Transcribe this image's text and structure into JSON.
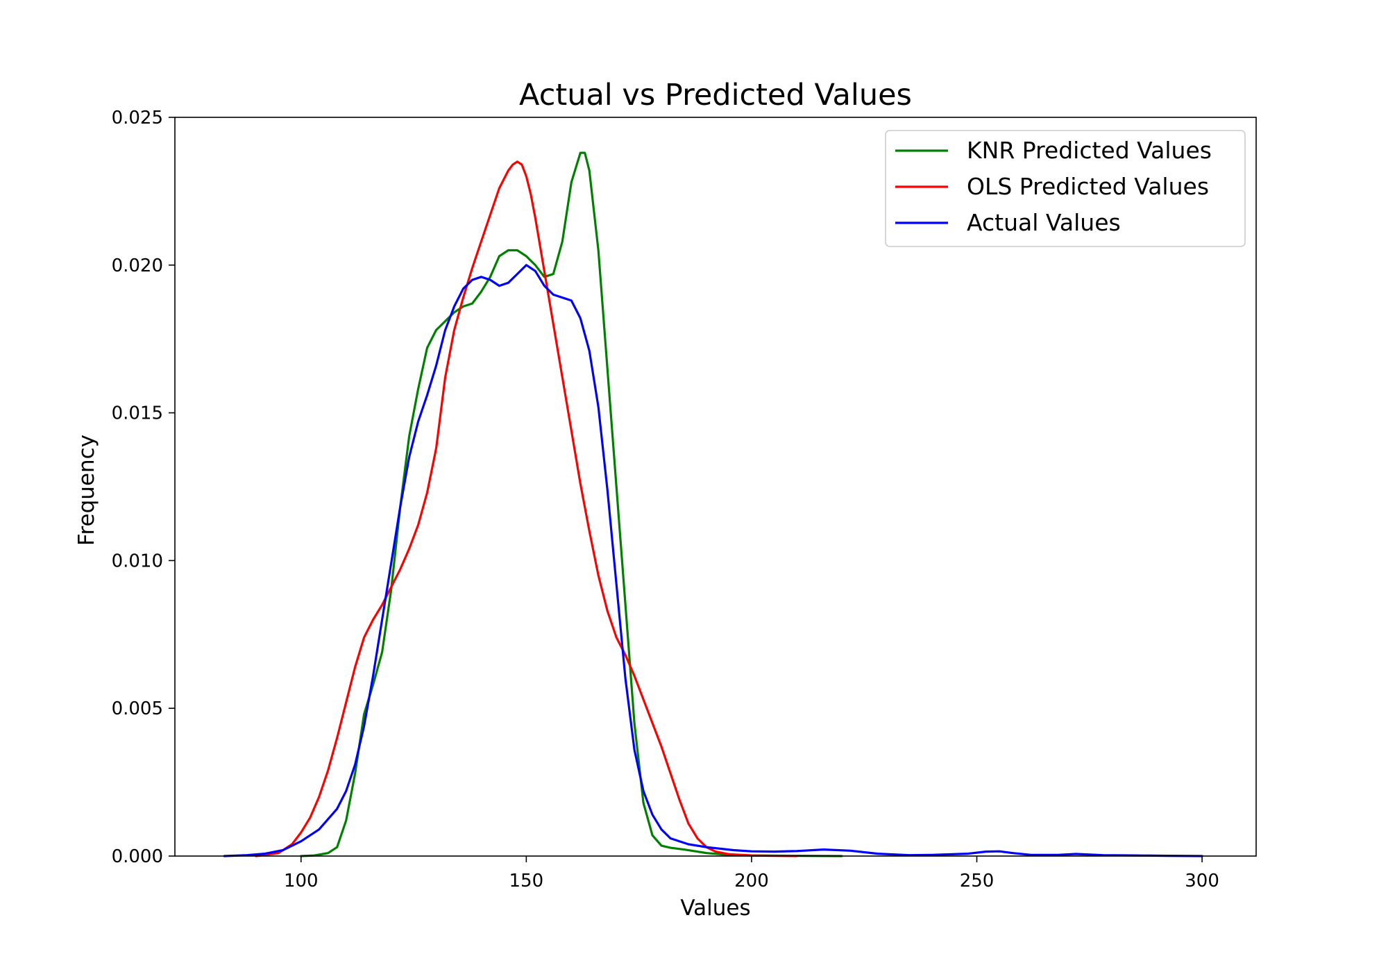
{
  "chart_data": {
    "type": "line",
    "title": "Actual vs Predicted Values",
    "xlabel": "Values",
    "ylabel": "Frequency",
    "xlim": [
      72,
      312
    ],
    "ylim": [
      0,
      0.025
    ],
    "xticks": [
      100,
      150,
      200,
      250,
      300
    ],
    "yticks": [
      0.0,
      0.005,
      0.01,
      0.015,
      0.02,
      0.025
    ],
    "ytick_labels": [
      "0.000",
      "0.005",
      "0.010",
      "0.015",
      "0.020",
      "0.025"
    ],
    "grid": false,
    "legend_position": "top-right",
    "series": [
      {
        "name": "KNR Predicted Values",
        "color": "#008000",
        "x": [
          100,
          103,
          106,
          108,
          110,
          112,
          114,
          116,
          118,
          120,
          122,
          124,
          126,
          128,
          130,
          132,
          134,
          136,
          138,
          140,
          142,
          144,
          146,
          148,
          150,
          152,
          154,
          156,
          158,
          160,
          162,
          163,
          164,
          166,
          168,
          170,
          172,
          174,
          176,
          178,
          180,
          182,
          185,
          190,
          195,
          200,
          210,
          220
        ],
        "y": [
          0,
          2e-05,
          0.0001,
          0.0003,
          0.0012,
          0.0028,
          0.0048,
          0.0058,
          0.0069,
          0.009,
          0.0118,
          0.0142,
          0.0158,
          0.0172,
          0.0178,
          0.0181,
          0.0184,
          0.0186,
          0.0187,
          0.0191,
          0.0196,
          0.0203,
          0.0205,
          0.0205,
          0.0203,
          0.02,
          0.0196,
          0.0197,
          0.0208,
          0.0228,
          0.0238,
          0.0238,
          0.0232,
          0.0205,
          0.0165,
          0.0125,
          0.0085,
          0.0045,
          0.0018,
          0.0007,
          0.00035,
          0.00028,
          0.00022,
          0.0001,
          4e-05,
          2e-05,
          1e-05,
          0
        ]
      },
      {
        "name": "OLS Predicted Values",
        "color": "#ff0000",
        "x": [
          90,
          95,
          98,
          100,
          102,
          104,
          106,
          108,
          110,
          112,
          114,
          116,
          118,
          120,
          122,
          124,
          126,
          128,
          130,
          132,
          134,
          136,
          138,
          140,
          142,
          144,
          146,
          147,
          148,
          149,
          150,
          151,
          152,
          154,
          156,
          158,
          160,
          162,
          164,
          166,
          168,
          170,
          172,
          174,
          176,
          178,
          180,
          182,
          184,
          186,
          188,
          190,
          192,
          195,
          200,
          205,
          210
        ],
        "y": [
          0,
          0.0001,
          0.0004,
          0.0008,
          0.0013,
          0.002,
          0.0029,
          0.004,
          0.0052,
          0.0064,
          0.0074,
          0.008,
          0.0085,
          0.0091,
          0.0097,
          0.0104,
          0.0112,
          0.0123,
          0.0138,
          0.0162,
          0.0178,
          0.0189,
          0.0199,
          0.0208,
          0.0217,
          0.0226,
          0.0232,
          0.0234,
          0.0235,
          0.0234,
          0.023,
          0.0224,
          0.0216,
          0.0198,
          0.018,
          0.0162,
          0.0144,
          0.0126,
          0.011,
          0.0095,
          0.0083,
          0.0074,
          0.0068,
          0.0061,
          0.0053,
          0.0045,
          0.0037,
          0.0028,
          0.0019,
          0.0011,
          0.0006,
          0.0003,
          0.00015,
          6e-05,
          2e-05,
          1e-05,
          0
        ]
      },
      {
        "name": "Actual Values",
        "color": "#0000ff",
        "x": [
          83,
          88,
          92,
          96,
          100,
          104,
          108,
          110,
          112,
          114,
          116,
          118,
          120,
          122,
          124,
          126,
          128,
          130,
          132,
          134,
          136,
          138,
          140,
          142,
          144,
          146,
          148,
          150,
          152,
          154,
          156,
          158,
          160,
          162,
          164,
          166,
          168,
          170,
          172,
          174,
          176,
          178,
          180,
          182,
          186,
          190,
          196,
          200,
          205,
          210,
          216,
          222,
          228,
          235,
          240,
          248,
          252,
          255,
          258,
          262,
          268,
          272,
          278,
          285,
          292,
          300
        ],
        "y": [
          0,
          3e-05,
          8e-05,
          0.0002,
          0.0005,
          0.0009,
          0.0016,
          0.0022,
          0.0031,
          0.0044,
          0.0061,
          0.008,
          0.0099,
          0.0118,
          0.0135,
          0.0147,
          0.0156,
          0.0166,
          0.0178,
          0.0186,
          0.0192,
          0.0195,
          0.0196,
          0.0195,
          0.0193,
          0.0194,
          0.0197,
          0.02,
          0.0198,
          0.0193,
          0.019,
          0.0189,
          0.0188,
          0.0182,
          0.0171,
          0.0152,
          0.0124,
          0.0092,
          0.006,
          0.0036,
          0.0022,
          0.0014,
          0.0009,
          0.0006,
          0.0004,
          0.0003,
          0.0002,
          0.00016,
          0.00015,
          0.00017,
          0.00022,
          0.00018,
          8e-05,
          3e-05,
          4e-05,
          8e-05,
          0.00015,
          0.00016,
          0.0001,
          4e-05,
          4e-05,
          7e-05,
          3e-05,
          2e-05,
          1e-05,
          0
        ]
      }
    ]
  }
}
